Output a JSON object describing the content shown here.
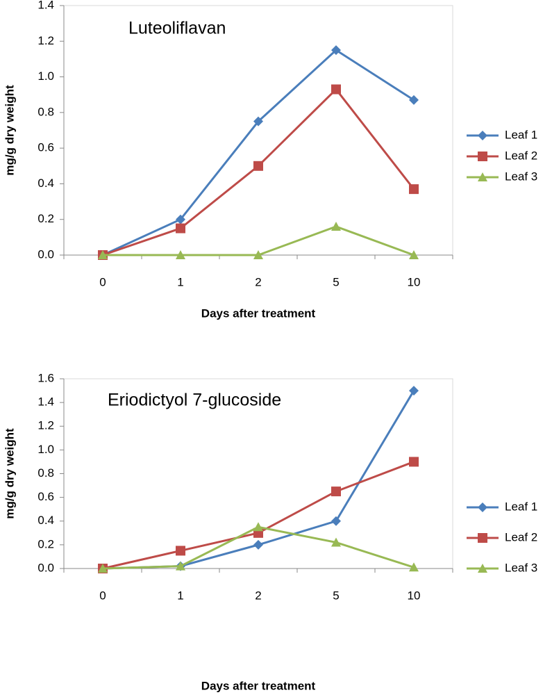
{
  "chart_data": [
    {
      "type": "line",
      "title": "Luteoliflavan",
      "xlabel": "Days after treatment",
      "ylabel": "mg/g dry weight",
      "categories": [
        "0",
        "1",
        "2",
        "5",
        "10"
      ],
      "series": [
        {
          "name": "Leaf 1",
          "color": "#4a7ebb",
          "marker": "diamond",
          "values": [
            0,
            0.2,
            0.75,
            1.15,
            0.87
          ]
        },
        {
          "name": "Leaf 2",
          "color": "#be4b48",
          "marker": "square",
          "values": [
            0,
            0.15,
            0.5,
            0.93,
            0.37
          ]
        },
        {
          "name": "Leaf 3",
          "color": "#98b954",
          "marker": "triangle",
          "values": [
            0,
            0,
            0,
            0.16,
            0
          ]
        }
      ],
      "ylim": [
        0,
        1.4
      ],
      "yticks": [
        {
          "value": 0,
          "label": "0.0"
        },
        0.2,
        0.4,
        0.6,
        0.8,
        {
          "value": 1,
          "label": "1.0"
        },
        1.2,
        1.4
      ],
      "legend": "right"
    },
    {
      "type": "line",
      "title": "Eriodictyol 7-glucoside",
      "xlabel": "Days after treatment",
      "ylabel": "mg/g dry weight",
      "categories": [
        "0",
        "1",
        "2",
        "5",
        "10"
      ],
      "series": [
        {
          "name": "Leaf 1",
          "color": "#4a7ebb",
          "marker": "diamond",
          "values": [
            0,
            0.02,
            0.2,
            0.4,
            1.5
          ]
        },
        {
          "name": "Leaf 2",
          "color": "#be4b48",
          "marker": "square",
          "values": [
            0,
            0.15,
            0.3,
            0.65,
            0.9
          ]
        },
        {
          "name": "Leaf 3",
          "color": "#98b954",
          "marker": "triangle",
          "values": [
            0,
            0.02,
            0.35,
            0.22,
            0.01
          ]
        }
      ],
      "ylim": [
        0,
        1.6
      ],
      "yticks": [
        {
          "value": 0,
          "label": "0.0"
        },
        0.2,
        0.4,
        0.6,
        0.8,
        {
          "value": 1,
          "label": "1.0"
        },
        1.2,
        1.4,
        1.6
      ],
      "legend": "right"
    }
  ]
}
